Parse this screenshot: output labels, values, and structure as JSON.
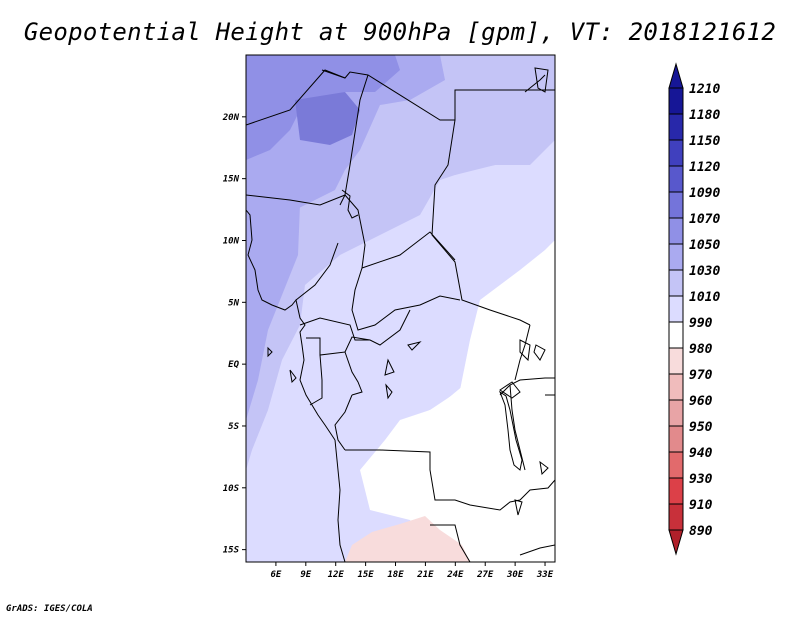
{
  "title": "Geopotential Height at 900hPa [gpm], VT: 2018121612",
  "credit": "GrADS: IGES/COLA",
  "map": {
    "lon_range": [
      3,
      34
    ],
    "lat_range": [
      -16,
      25
    ],
    "x_ticks": [
      "6E",
      "9E",
      "12E",
      "15E",
      "18E",
      "21E",
      "24E",
      "27E",
      "30E",
      "33E"
    ],
    "y_ticks": [
      "20N",
      "15N",
      "10N",
      "5N",
      "EQ",
      "5S",
      "10S",
      "15S"
    ],
    "colorbar": {
      "levels": [
        "890",
        "910",
        "930",
        "940",
        "950",
        "960",
        "970",
        "980",
        "990",
        "1010",
        "1030",
        "1050",
        "1070",
        "1090",
        "1120",
        "1150",
        "1180",
        "1210"
      ],
      "colors": [
        "#b0202a",
        "#c8303a",
        "#dc4048",
        "#e26a6c",
        "#e28a8c",
        "#e8a4a6",
        "#f0bcbc",
        "#f8dcdc",
        "#ffffff",
        "#dcdcff",
        "#c4c4f6",
        "#aaaaf0",
        "#9090e6",
        "#7474da",
        "#5858cc",
        "#4040be",
        "#2828aa",
        "#161696"
      ]
    }
  }
}
